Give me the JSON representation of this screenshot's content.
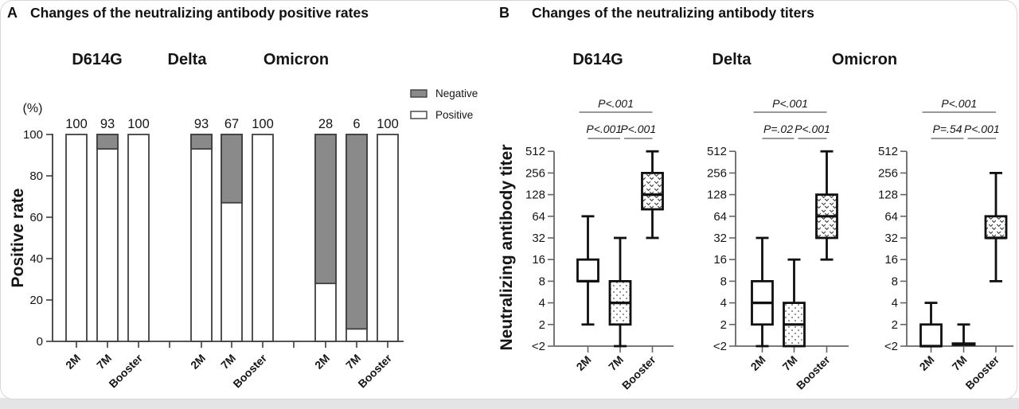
{
  "chart_data": [
    {
      "type": "bar",
      "panel_label": "A",
      "title": "Changes of the neutralizing antibody positive rates",
      "ylabel": "Positive rate",
      "y_unit_label": "(%)",
      "ylim": [
        0,
        100
      ],
      "yticks": [
        0,
        20,
        40,
        60,
        80,
        100
      ],
      "categories": [
        "2M",
        "7M",
        "Booster"
      ],
      "stacking": "each bar stacks to 100% with white Positive segment and gray Negative segment on top",
      "legend": [
        {
          "label": "Negative",
          "fill_color": "#8a8a8a"
        },
        {
          "label": "Positive",
          "fill_color": "#ffffff"
        }
      ],
      "groups": [
        {
          "name": "D614G",
          "positive_rate": [
            100,
            93,
            100
          ],
          "negative_rate": [
            0,
            7,
            0
          ]
        },
        {
          "name": "Delta",
          "positive_rate": [
            93,
            67,
            100
          ],
          "negative_rate": [
            7,
            33,
            0
          ]
        },
        {
          "name": "Omicron",
          "positive_rate": [
            28,
            6,
            100
          ],
          "negative_rate": [
            72,
            94,
            0
          ]
        }
      ],
      "bar_value_labels": [
        [
          100,
          93,
          100
        ],
        [
          93,
          67,
          100
        ],
        [
          28,
          6,
          100
        ]
      ]
    },
    {
      "type": "boxplot",
      "panel_label": "B",
      "title": "Changes of the neutralizing antibody titers",
      "ylabel": "Neutralizing antibody titer",
      "yscale": "log2",
      "yticks": [
        "<2",
        "2",
        "4",
        "8",
        "16",
        "32",
        "64",
        "128",
        "256",
        "512"
      ],
      "categories": [
        "2M",
        "7M",
        "Booster"
      ],
      "box_fill_styles": {
        "2M": "white",
        "7M": "dots",
        "Booster": "vees"
      },
      "groups": [
        {
          "name": "D614G",
          "boxes": [
            {
              "category": "2M",
              "whisker_low": 2,
              "q1": 8,
              "median": 8,
              "q3": 16,
              "whisker_high": 64,
              "fill": "white"
            },
            {
              "category": "7M",
              "whisker_low": "<2",
              "q1": 2,
              "median": 4,
              "q3": 8,
              "whisker_high": 32,
              "fill": "dots"
            },
            {
              "category": "Booster",
              "whisker_low": 32,
              "q1": 80,
              "median": 128,
              "q3": 256,
              "whisker_high": 512,
              "fill": "vees"
            }
          ],
          "p_values": {
            "2M_vs_7M": "P<.001",
            "7M_vs_Booster": "P<.001",
            "2M_vs_Booster": "P<.001"
          }
        },
        {
          "name": "Delta",
          "boxes": [
            {
              "category": "2M",
              "whisker_low": "<2",
              "q1": 2,
              "median": 4,
              "q3": 8,
              "whisker_high": 32,
              "fill": "white"
            },
            {
              "category": "7M",
              "whisker_low": "<2",
              "q1": "<2",
              "median": 2,
              "q3": 4,
              "whisker_high": 16,
              "fill": "dots"
            },
            {
              "category": "Booster",
              "whisker_low": 16,
              "q1": 32,
              "median": 64,
              "q3": 128,
              "whisker_high": 512,
              "fill": "vees"
            }
          ],
          "p_values": {
            "2M_vs_7M": "P=.02",
            "7M_vs_Booster": "P<.001",
            "2M_vs_Booster": "P<.001"
          }
        },
        {
          "name": "Omicron",
          "boxes": [
            {
              "category": "2M",
              "whisker_low": "<2",
              "q1": "<2",
              "median": "<2",
              "q3": 2,
              "whisker_high": 4,
              "fill": "white"
            },
            {
              "category": "7M",
              "whisker_low": "<2",
              "q1": "<2",
              "median": "<2",
              "q3": "<2",
              "whisker_high": 2,
              "fill": "dots"
            },
            {
              "category": "Booster",
              "whisker_low": 8,
              "q1": 32,
              "median": 32,
              "q3": 64,
              "whisker_high": 256,
              "fill": "vees"
            }
          ],
          "p_values": {
            "2M_vs_7M": "P=.54",
            "7M_vs_Booster": "P<.001",
            "2M_vs_Booster": "P<.001"
          }
        }
      ]
    }
  ],
  "colors": {
    "negative_gray": "#8a8a8a",
    "bar_border": "#3f3f3f",
    "axis_gray": "#666666",
    "box_black": "#101010",
    "p_text": "#333333",
    "bracket_line": "#777777",
    "card_border": "#d7d7d7",
    "bottom_strip": "#e4e4e6"
  }
}
